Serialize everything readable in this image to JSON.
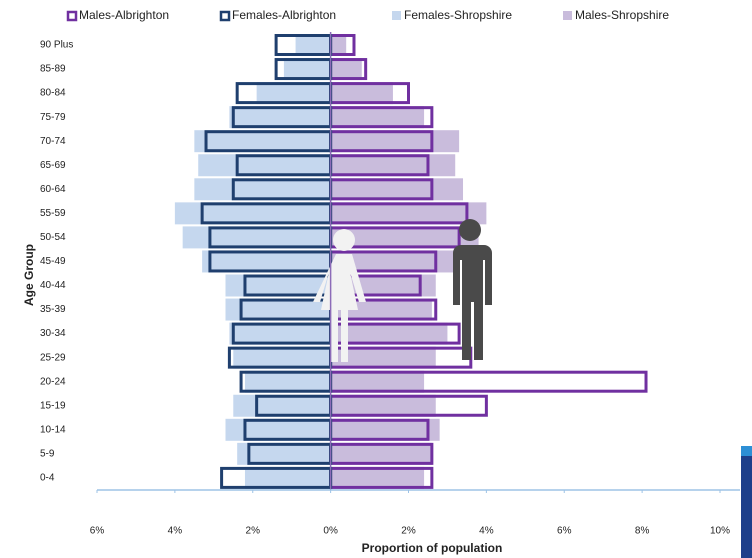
{
  "chart_data": {
    "type": "pyramid",
    "x_label": "Proportion of population",
    "y_label": "Age Group",
    "categories": [
      "90 Plus",
      "85-89",
      "80-84",
      "75-79",
      "70-74",
      "65-69",
      "60-64",
      "55-59",
      "50-54",
      "45-49",
      "40-44",
      "35-39",
      "30-34",
      "25-29",
      "20-24",
      "15-19",
      "10-14",
      "5-9",
      "0-4"
    ],
    "series": [
      {
        "name": "Males-Albrighton",
        "color": "#7030a0",
        "style": "outline",
        "values": [
          0.6,
          0.9,
          2.0,
          2.6,
          2.6,
          2.5,
          2.6,
          3.5,
          3.3,
          2.7,
          2.3,
          2.7,
          3.3,
          3.6,
          8.1,
          4.0,
          2.5,
          2.6,
          2.6
        ]
      },
      {
        "name": "Females-Albrighton",
        "color": "#1f3f6e",
        "style": "outline",
        "values": [
          -1.4,
          -1.4,
          -2.4,
          -2.5,
          -3.2,
          -2.4,
          -2.5,
          -3.3,
          -3.1,
          -3.1,
          -2.2,
          -2.3,
          -2.5,
          -2.6,
          -2.3,
          -1.9,
          -2.2,
          -2.1,
          -2.8
        ]
      },
      {
        "name": "Females-Shropshire",
        "color": "#c5d7ee",
        "style": "fill",
        "values": [
          -0.9,
          -1.2,
          -1.9,
          -2.6,
          -3.5,
          -3.4,
          -3.5,
          -4.0,
          -3.8,
          -3.3,
          -2.7,
          -2.7,
          -2.6,
          -2.5,
          -2.2,
          -2.5,
          -2.7,
          -2.4,
          -2.2
        ]
      },
      {
        "name": "Males-Shropshire",
        "color": "#c9bcdc",
        "style": "fill",
        "values": [
          0.4,
          0.8,
          1.6,
          2.4,
          3.3,
          3.2,
          3.4,
          4.0,
          3.8,
          3.3,
          2.7,
          2.6,
          3.0,
          2.7,
          2.4,
          2.7,
          2.8,
          2.6,
          2.4
        ]
      }
    ],
    "xlim": [
      -6,
      10
    ],
    "xticks": [
      {
        "value": -6,
        "label": "6%"
      },
      {
        "value": -4,
        "label": "4%"
      },
      {
        "value": -2,
        "label": "2%"
      },
      {
        "value": 0,
        "label": "0%"
      },
      {
        "value": 2,
        "label": "2%"
      },
      {
        "value": 4,
        "label": "4%"
      },
      {
        "value": 6,
        "label": "6%"
      },
      {
        "value": 8,
        "label": "8%"
      },
      {
        "value": 10,
        "label": "10%"
      }
    ],
    "legend": "top"
  }
}
